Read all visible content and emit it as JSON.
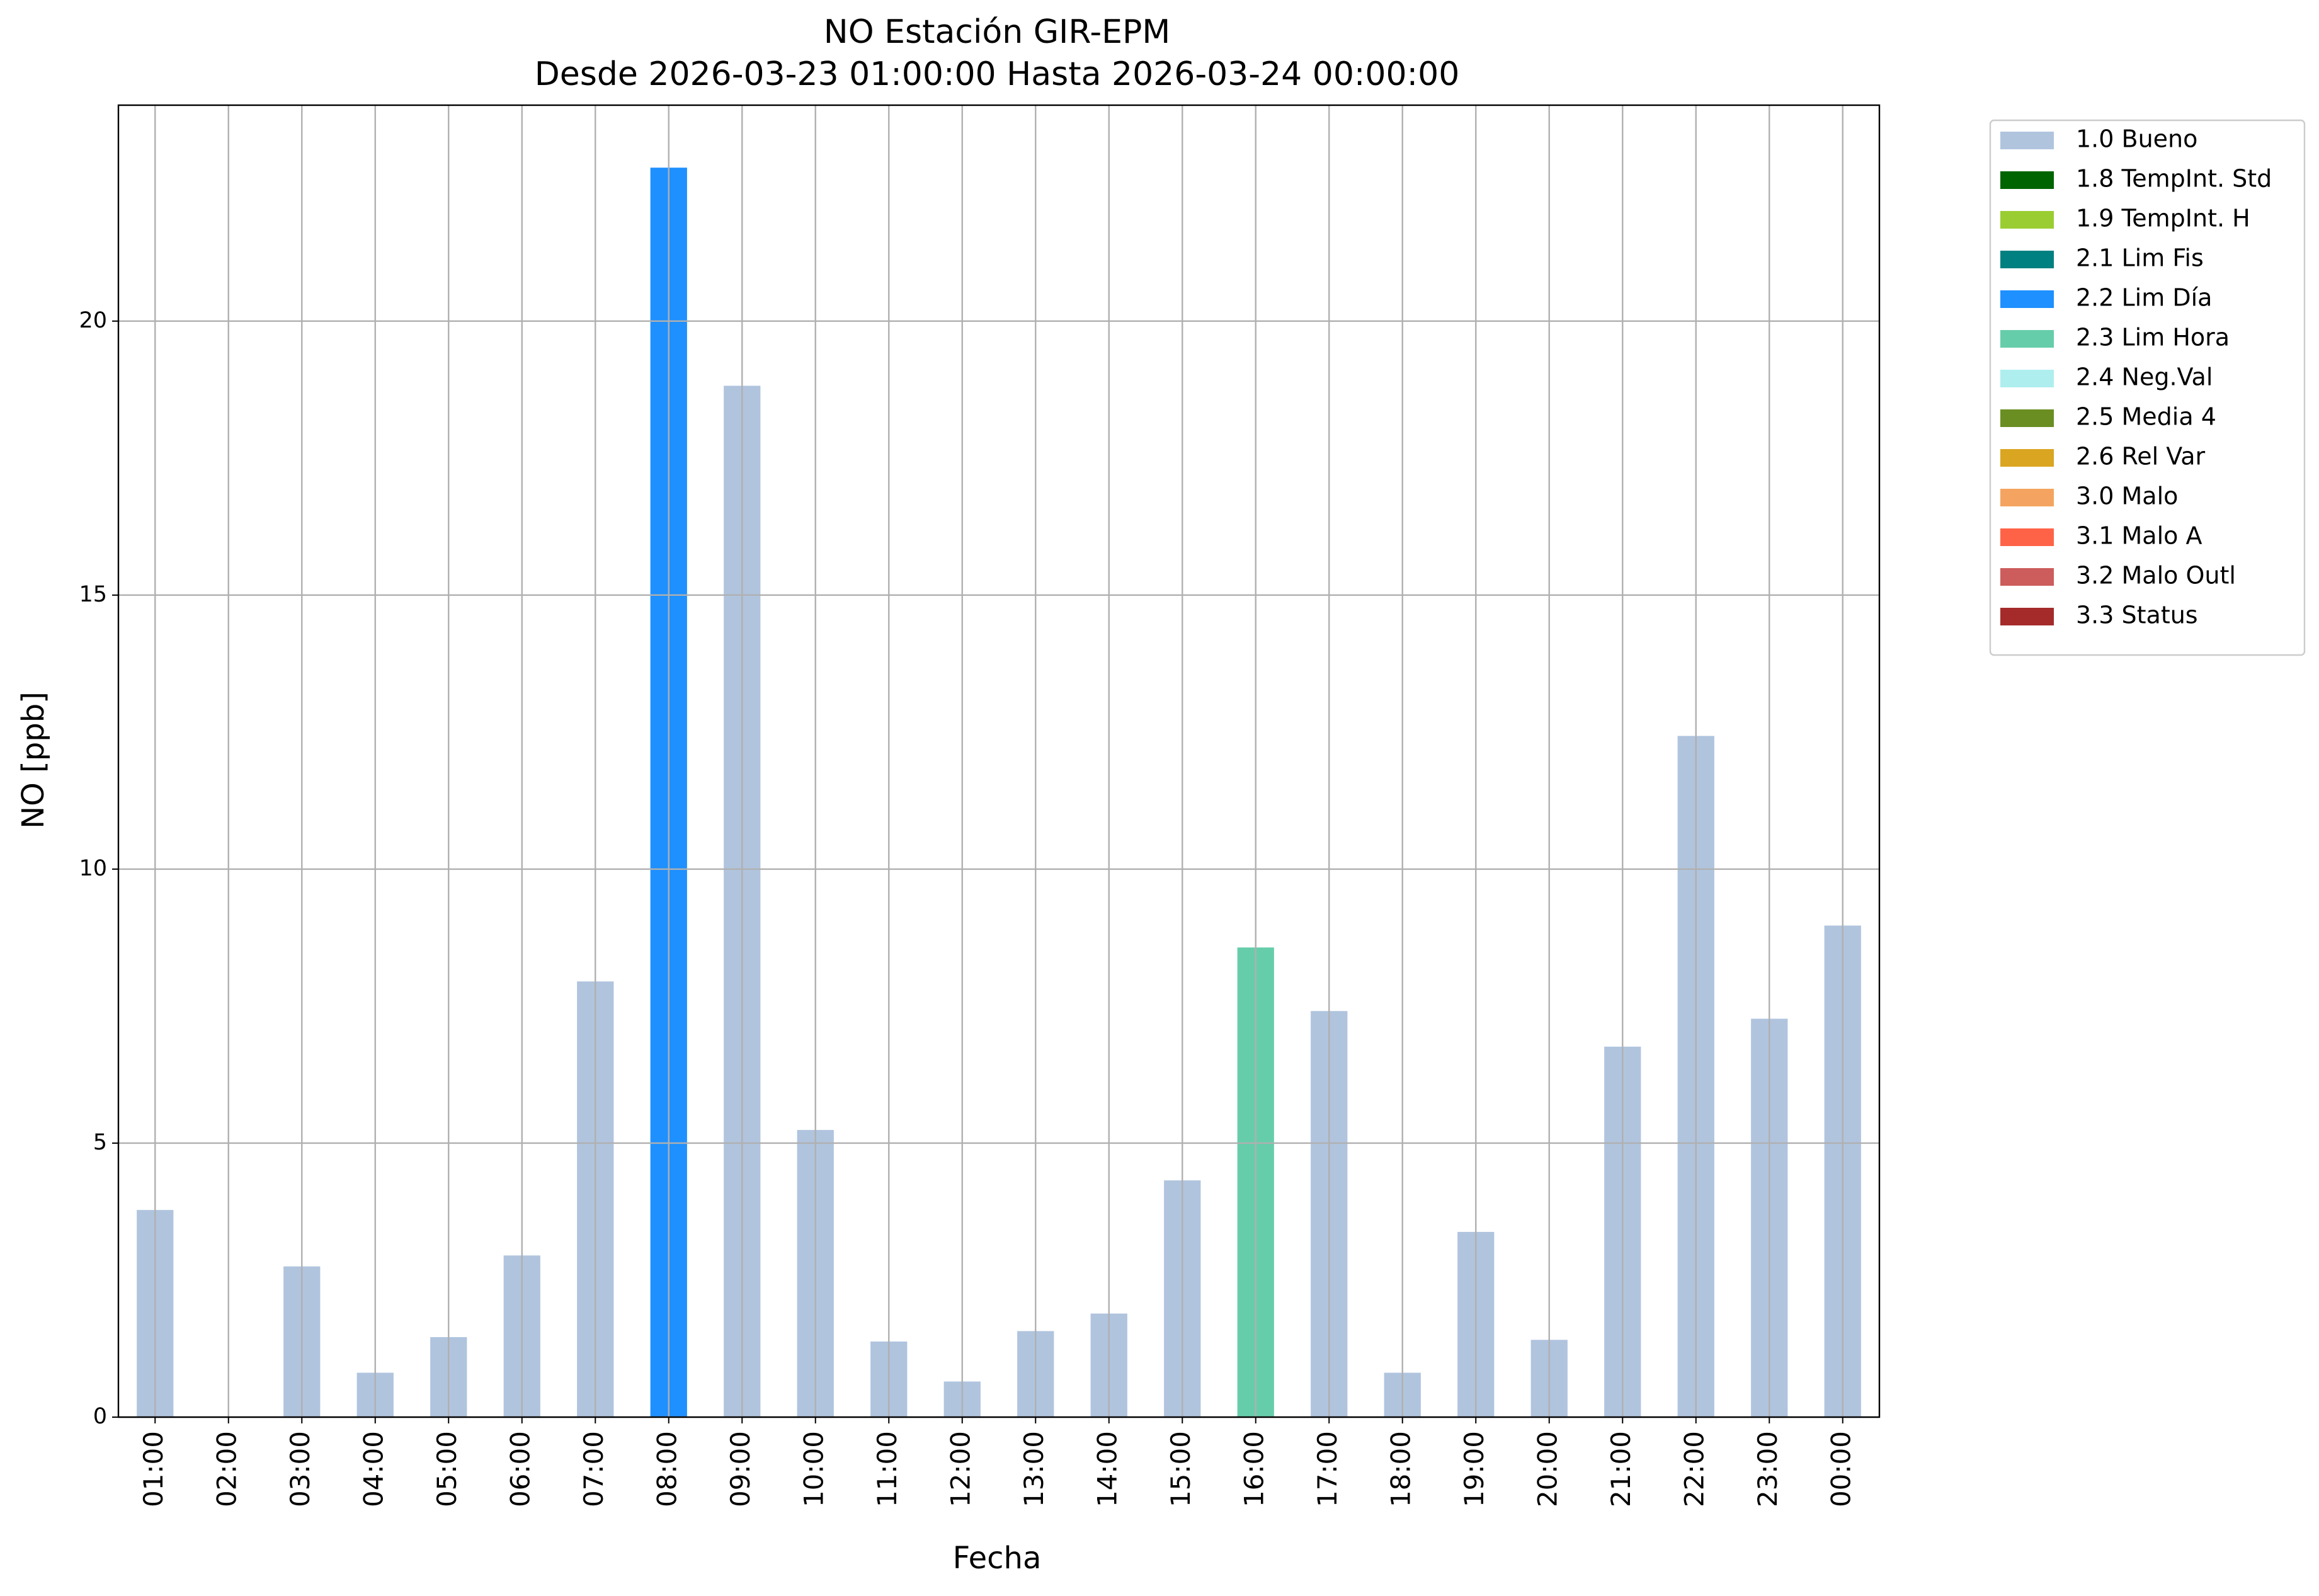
{
  "chart_data": {
    "type": "bar",
    "stacked": true,
    "title": "NO Estación GIR-EPM",
    "subtitle": "Desde 2026-03-23 01:00:00 Hasta 2026-03-24 00:00:00",
    "x_label": "Fecha",
    "y_label": "NO [ppb]",
    "categories": [
      "01:00",
      "02:00",
      "03:00",
      "04:00",
      "05:00",
      "06:00",
      "07:00",
      "08:00",
      "09:00",
      "10:00",
      "11:00",
      "12:00",
      "13:00",
      "14:00",
      "15:00",
      "16:00",
      "17:00",
      "18:00",
      "19:00",
      "20:00",
      "21:00",
      "22:00",
      "23:00",
      "00:00"
    ],
    "series": [
      {
        "name": "1.0 Bueno",
        "color": "#b0c4de",
        "values": [
          3.78,
          null,
          2.75,
          0.81,
          1.46,
          2.95,
          7.95,
          null,
          18.82,
          5.24,
          1.38,
          0.65,
          1.57,
          1.89,
          4.32,
          null,
          7.41,
          0.81,
          3.38,
          1.41,
          6.76,
          12.43,
          7.27,
          8.97
        ]
      },
      {
        "name": "1.8 TempInt. Std",
        "color": "#006400",
        "values": [
          null,
          null,
          null,
          null,
          null,
          null,
          null,
          null,
          null,
          null,
          null,
          null,
          null,
          null,
          null,
          null,
          null,
          null,
          null,
          null,
          null,
          null,
          null,
          null
        ]
      },
      {
        "name": "1.9 TempInt. H",
        "color": "#9acd32",
        "values": [
          null,
          null,
          null,
          null,
          null,
          null,
          null,
          null,
          null,
          null,
          null,
          null,
          null,
          null,
          null,
          null,
          null,
          null,
          null,
          null,
          null,
          null,
          null,
          null
        ]
      },
      {
        "name": "2.1 Lim Fis",
        "color": "#008080",
        "values": [
          null,
          null,
          null,
          null,
          null,
          null,
          null,
          null,
          null,
          null,
          null,
          null,
          null,
          null,
          null,
          null,
          null,
          null,
          null,
          null,
          null,
          null,
          null,
          null
        ]
      },
      {
        "name": "2.2 Lim Día",
        "color": "#1e90ff",
        "values": [
          null,
          null,
          null,
          null,
          null,
          null,
          null,
          22.8,
          null,
          null,
          null,
          null,
          null,
          null,
          null,
          null,
          null,
          null,
          null,
          null,
          null,
          null,
          null,
          null
        ]
      },
      {
        "name": "2.3 Lim Hora",
        "color": "#66cdaa",
        "values": [
          null,
          null,
          null,
          null,
          null,
          null,
          null,
          null,
          null,
          null,
          null,
          null,
          null,
          null,
          null,
          8.57,
          null,
          null,
          null,
          null,
          null,
          null,
          null,
          null
        ]
      },
      {
        "name": "2.4 Neg.Val",
        "color": "#afeeee",
        "values": [
          null,
          null,
          null,
          null,
          null,
          null,
          null,
          null,
          null,
          null,
          null,
          null,
          null,
          null,
          null,
          null,
          null,
          null,
          null,
          null,
          null,
          null,
          null,
          null
        ]
      },
      {
        "name": "2.5 Media 4",
        "color": "#6b8e23",
        "values": [
          null,
          null,
          null,
          null,
          null,
          null,
          null,
          null,
          null,
          null,
          null,
          null,
          null,
          null,
          null,
          null,
          null,
          null,
          null,
          null,
          null,
          null,
          null,
          null
        ]
      },
      {
        "name": "2.6 Rel Var",
        "color": "#daa520",
        "values": [
          null,
          null,
          null,
          null,
          null,
          null,
          null,
          null,
          null,
          null,
          null,
          null,
          null,
          null,
          null,
          null,
          null,
          null,
          null,
          null,
          null,
          null,
          null,
          null
        ]
      },
      {
        "name": "3.0 Malo",
        "color": "#f4a460",
        "values": [
          null,
          null,
          null,
          null,
          null,
          null,
          null,
          null,
          null,
          null,
          null,
          null,
          null,
          null,
          null,
          null,
          null,
          null,
          null,
          null,
          null,
          null,
          null,
          null
        ]
      },
      {
        "name": "3.1 Malo A",
        "color": "#ff6347",
        "values": [
          null,
          null,
          null,
          null,
          null,
          null,
          null,
          null,
          null,
          null,
          null,
          null,
          null,
          null,
          null,
          null,
          null,
          null,
          null,
          null,
          null,
          null,
          null,
          null
        ]
      },
      {
        "name": "3.2 Malo Outl",
        "color": "#cd5c5c",
        "values": [
          null,
          null,
          null,
          null,
          null,
          null,
          null,
          null,
          null,
          null,
          null,
          null,
          null,
          null,
          null,
          null,
          null,
          null,
          null,
          null,
          null,
          null,
          null,
          null
        ]
      },
      {
        "name": "3.3 Status",
        "color": "#a52a2a",
        "values": [
          null,
          null,
          null,
          null,
          null,
          null,
          null,
          null,
          null,
          null,
          null,
          null,
          null,
          null,
          null,
          null,
          null,
          null,
          null,
          null,
          null,
          null,
          null,
          null
        ]
      }
    ],
    "ylim": [
      0,
      23.94
    ],
    "yticks": [
      0,
      5,
      10,
      15,
      20
    ],
    "grid": true,
    "legend": "outside right"
  }
}
